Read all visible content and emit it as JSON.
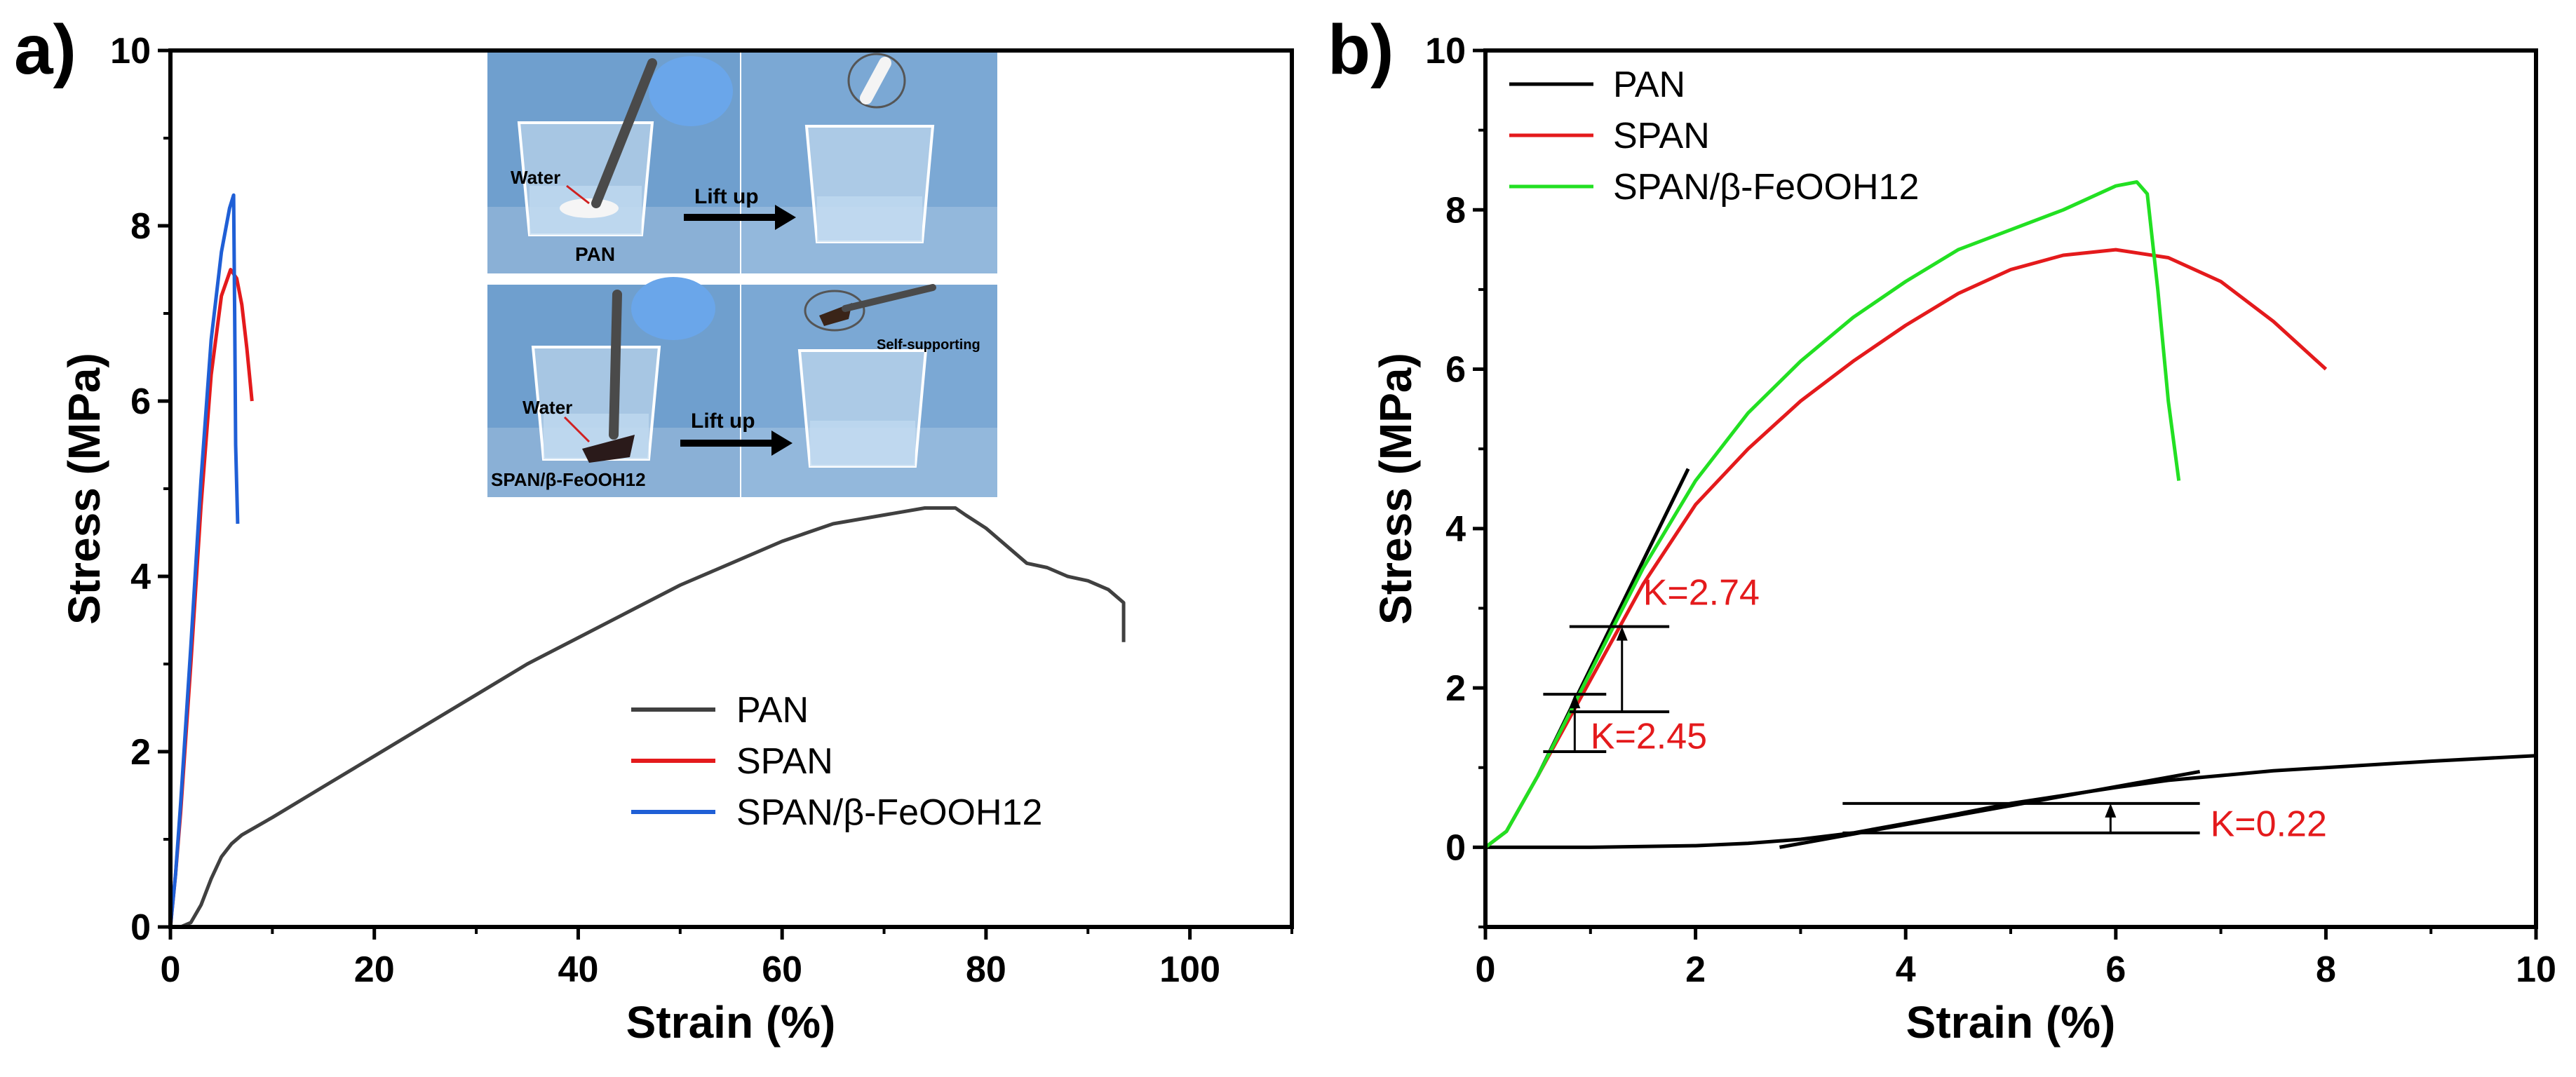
{
  "chart_data": [
    {
      "type": "line",
      "panel_label": "a)",
      "xlabel": "Strain (%)",
      "ylabel": "Stress (MPa)",
      "xlim": [
        0,
        110
      ],
      "ylim": [
        0,
        10
      ],
      "xticks": [
        0,
        20,
        40,
        60,
        80,
        100
      ],
      "yticks": [
        0,
        2,
        4,
        6,
        8,
        10
      ],
      "legend_position": "bottom-right",
      "series": [
        {
          "name": "PAN",
          "color": "#404040",
          "points": [
            [
              0,
              0
            ],
            [
              1,
              0
            ],
            [
              2,
              0.05
            ],
            [
              3,
              0.25
            ],
            [
              4,
              0.55
            ],
            [
              5,
              0.8
            ],
            [
              6,
              0.95
            ],
            [
              7,
              1.05
            ],
            [
              10,
              1.25
            ],
            [
              15,
              1.6
            ],
            [
              20,
              1.95
            ],
            [
              25,
              2.3
            ],
            [
              30,
              2.65
            ],
            [
              35,
              3.0
            ],
            [
              40,
              3.3
            ],
            [
              45,
              3.6
            ],
            [
              50,
              3.9
            ],
            [
              55,
              4.15
            ],
            [
              60,
              4.4
            ],
            [
              65,
              4.6
            ],
            [
              70,
              4.7
            ],
            [
              74,
              4.78
            ],
            [
              77,
              4.78
            ],
            [
              78,
              4.7
            ],
            [
              80,
              4.55
            ],
            [
              82,
              4.35
            ],
            [
              84,
              4.15
            ],
            [
              86,
              4.1
            ],
            [
              88,
              4.0
            ],
            [
              90,
              3.95
            ],
            [
              92,
              3.85
            ],
            [
              93.5,
              3.7
            ],
            [
              93.5,
              3.25
            ]
          ]
        },
        {
          "name": "SPAN",
          "color": "#e41a1c",
          "points": [
            [
              0,
              0
            ],
            [
              0.5,
              0.6
            ],
            [
              1,
              1.3
            ],
            [
              2,
              3.0
            ],
            [
              3,
              4.8
            ],
            [
              4,
              6.3
            ],
            [
              5,
              7.2
            ],
            [
              5.9,
              7.5
            ],
            [
              6.5,
              7.4
            ],
            [
              7,
              7.1
            ],
            [
              7.5,
              6.6
            ],
            [
              8,
              6.0
            ]
          ]
        },
        {
          "name": "SPAN/β-FeOOH12",
          "color": "#1f5fd6",
          "points": [
            [
              0,
              0
            ],
            [
              0.5,
              0.6
            ],
            [
              1,
              1.4
            ],
            [
              2,
              3.2
            ],
            [
              3,
              5.1
            ],
            [
              4,
              6.7
            ],
            [
              5,
              7.7
            ],
            [
              5.8,
              8.2
            ],
            [
              6.2,
              8.35
            ],
            [
              6.3,
              7.0
            ],
            [
              6.4,
              5.5
            ],
            [
              6.6,
              4.6
            ]
          ]
        }
      ],
      "inset": {
        "top_left": {
          "labels": [
            "Water",
            "PAN"
          ],
          "arrow_label": "Lift up"
        },
        "bottom_left": {
          "labels": [
            "Water",
            "SPAN/β-FeOOH12"
          ],
          "arrow_label": "Lift up"
        },
        "bottom_right": {
          "labels": [
            "Self-supporting"
          ]
        }
      }
    },
    {
      "type": "line",
      "panel_label": "b)",
      "xlabel": "Strain (%)",
      "ylabel": "Stress (MPa)",
      "xlim": [
        0,
        10
      ],
      "ylim": [
        -1,
        10
      ],
      "xticks": [
        0,
        2,
        4,
        6,
        8,
        10
      ],
      "yticks": [
        0,
        2,
        4,
        6,
        8,
        10
      ],
      "legend_position": "top-left",
      "series": [
        {
          "name": "PAN",
          "color": "#000000",
          "points": [
            [
              0,
              0
            ],
            [
              1,
              0
            ],
            [
              2,
              0.02
            ],
            [
              2.5,
              0.05
            ],
            [
              3,
              0.1
            ],
            [
              3.5,
              0.18
            ],
            [
              4,
              0.3
            ],
            [
              4.5,
              0.42
            ],
            [
              5,
              0.55
            ],
            [
              5.5,
              0.65
            ],
            [
              6,
              0.75
            ],
            [
              6.5,
              0.84
            ],
            [
              7,
              0.9
            ],
            [
              7.5,
              0.96
            ],
            [
              8,
              1.0
            ],
            [
              9,
              1.08
            ],
            [
              10,
              1.15
            ]
          ]
        },
        {
          "name": "SPAN",
          "color": "#e41a1c",
          "points": [
            [
              0,
              0
            ],
            [
              0.2,
              0.2
            ],
            [
              0.5,
              0.9
            ],
            [
              1,
              2.1
            ],
            [
              1.5,
              3.3
            ],
            [
              2,
              4.3
            ],
            [
              2.5,
              5.0
            ],
            [
              3,
              5.6
            ],
            [
              3.5,
              6.1
            ],
            [
              4,
              6.55
            ],
            [
              4.5,
              6.95
            ],
            [
              5,
              7.25
            ],
            [
              5.5,
              7.43
            ],
            [
              6,
              7.5
            ],
            [
              6.5,
              7.4
            ],
            [
              7,
              7.1
            ],
            [
              7.5,
              6.6
            ],
            [
              8,
              6.0
            ]
          ]
        },
        {
          "name": "SPAN/β-FeOOH12",
          "color": "#22e022",
          "points": [
            [
              0,
              0
            ],
            [
              0.2,
              0.2
            ],
            [
              0.5,
              0.9
            ],
            [
              1,
              2.2
            ],
            [
              1.5,
              3.5
            ],
            [
              2,
              4.6
            ],
            [
              2.5,
              5.45
            ],
            [
              3,
              6.1
            ],
            [
              3.5,
              6.65
            ],
            [
              4,
              7.1
            ],
            [
              4.5,
              7.5
            ],
            [
              5,
              7.75
            ],
            [
              5.5,
              8.0
            ],
            [
              6,
              8.3
            ],
            [
              6.2,
              8.35
            ],
            [
              6.3,
              8.2
            ],
            [
              6.4,
              7.0
            ],
            [
              6.5,
              5.6
            ],
            [
              6.6,
              4.6
            ]
          ]
        }
      ],
      "fit_lines": [
        {
          "from": [
            0.5,
            0.9
          ],
          "to": [
            1.93,
            4.75
          ],
          "color": "#000000"
        },
        {
          "from": [
            2.8,
            0.0
          ],
          "to": [
            6.8,
            0.95
          ],
          "color": "#000000"
        }
      ],
      "annotations": [
        {
          "label": "K=2.74",
          "color": "#e41a1c",
          "value_x": 1.5,
          "value_y": 3.2,
          "marker": {
            "x": 1.3,
            "y_low": 1.7,
            "y_high": 2.77,
            "h_from": 0.8,
            "h_to": 1.75
          }
        },
        {
          "label": "K=2.45",
          "color": "#e41a1c",
          "value_x": 1.0,
          "value_y": 1.4,
          "marker": {
            "x": 0.85,
            "y_low": 1.2,
            "y_high": 1.92,
            "h_from": 0.55,
            "h_to": 1.15
          }
        },
        {
          "label": "K=0.22",
          "color": "#e41a1c",
          "value_x": 6.9,
          "value_y": 0.3,
          "marker": {
            "x": 5.95,
            "y_low": 0.18,
            "y_high": 0.55,
            "h_from": 3.4,
            "h_to": 6.8
          }
        }
      ]
    }
  ]
}
